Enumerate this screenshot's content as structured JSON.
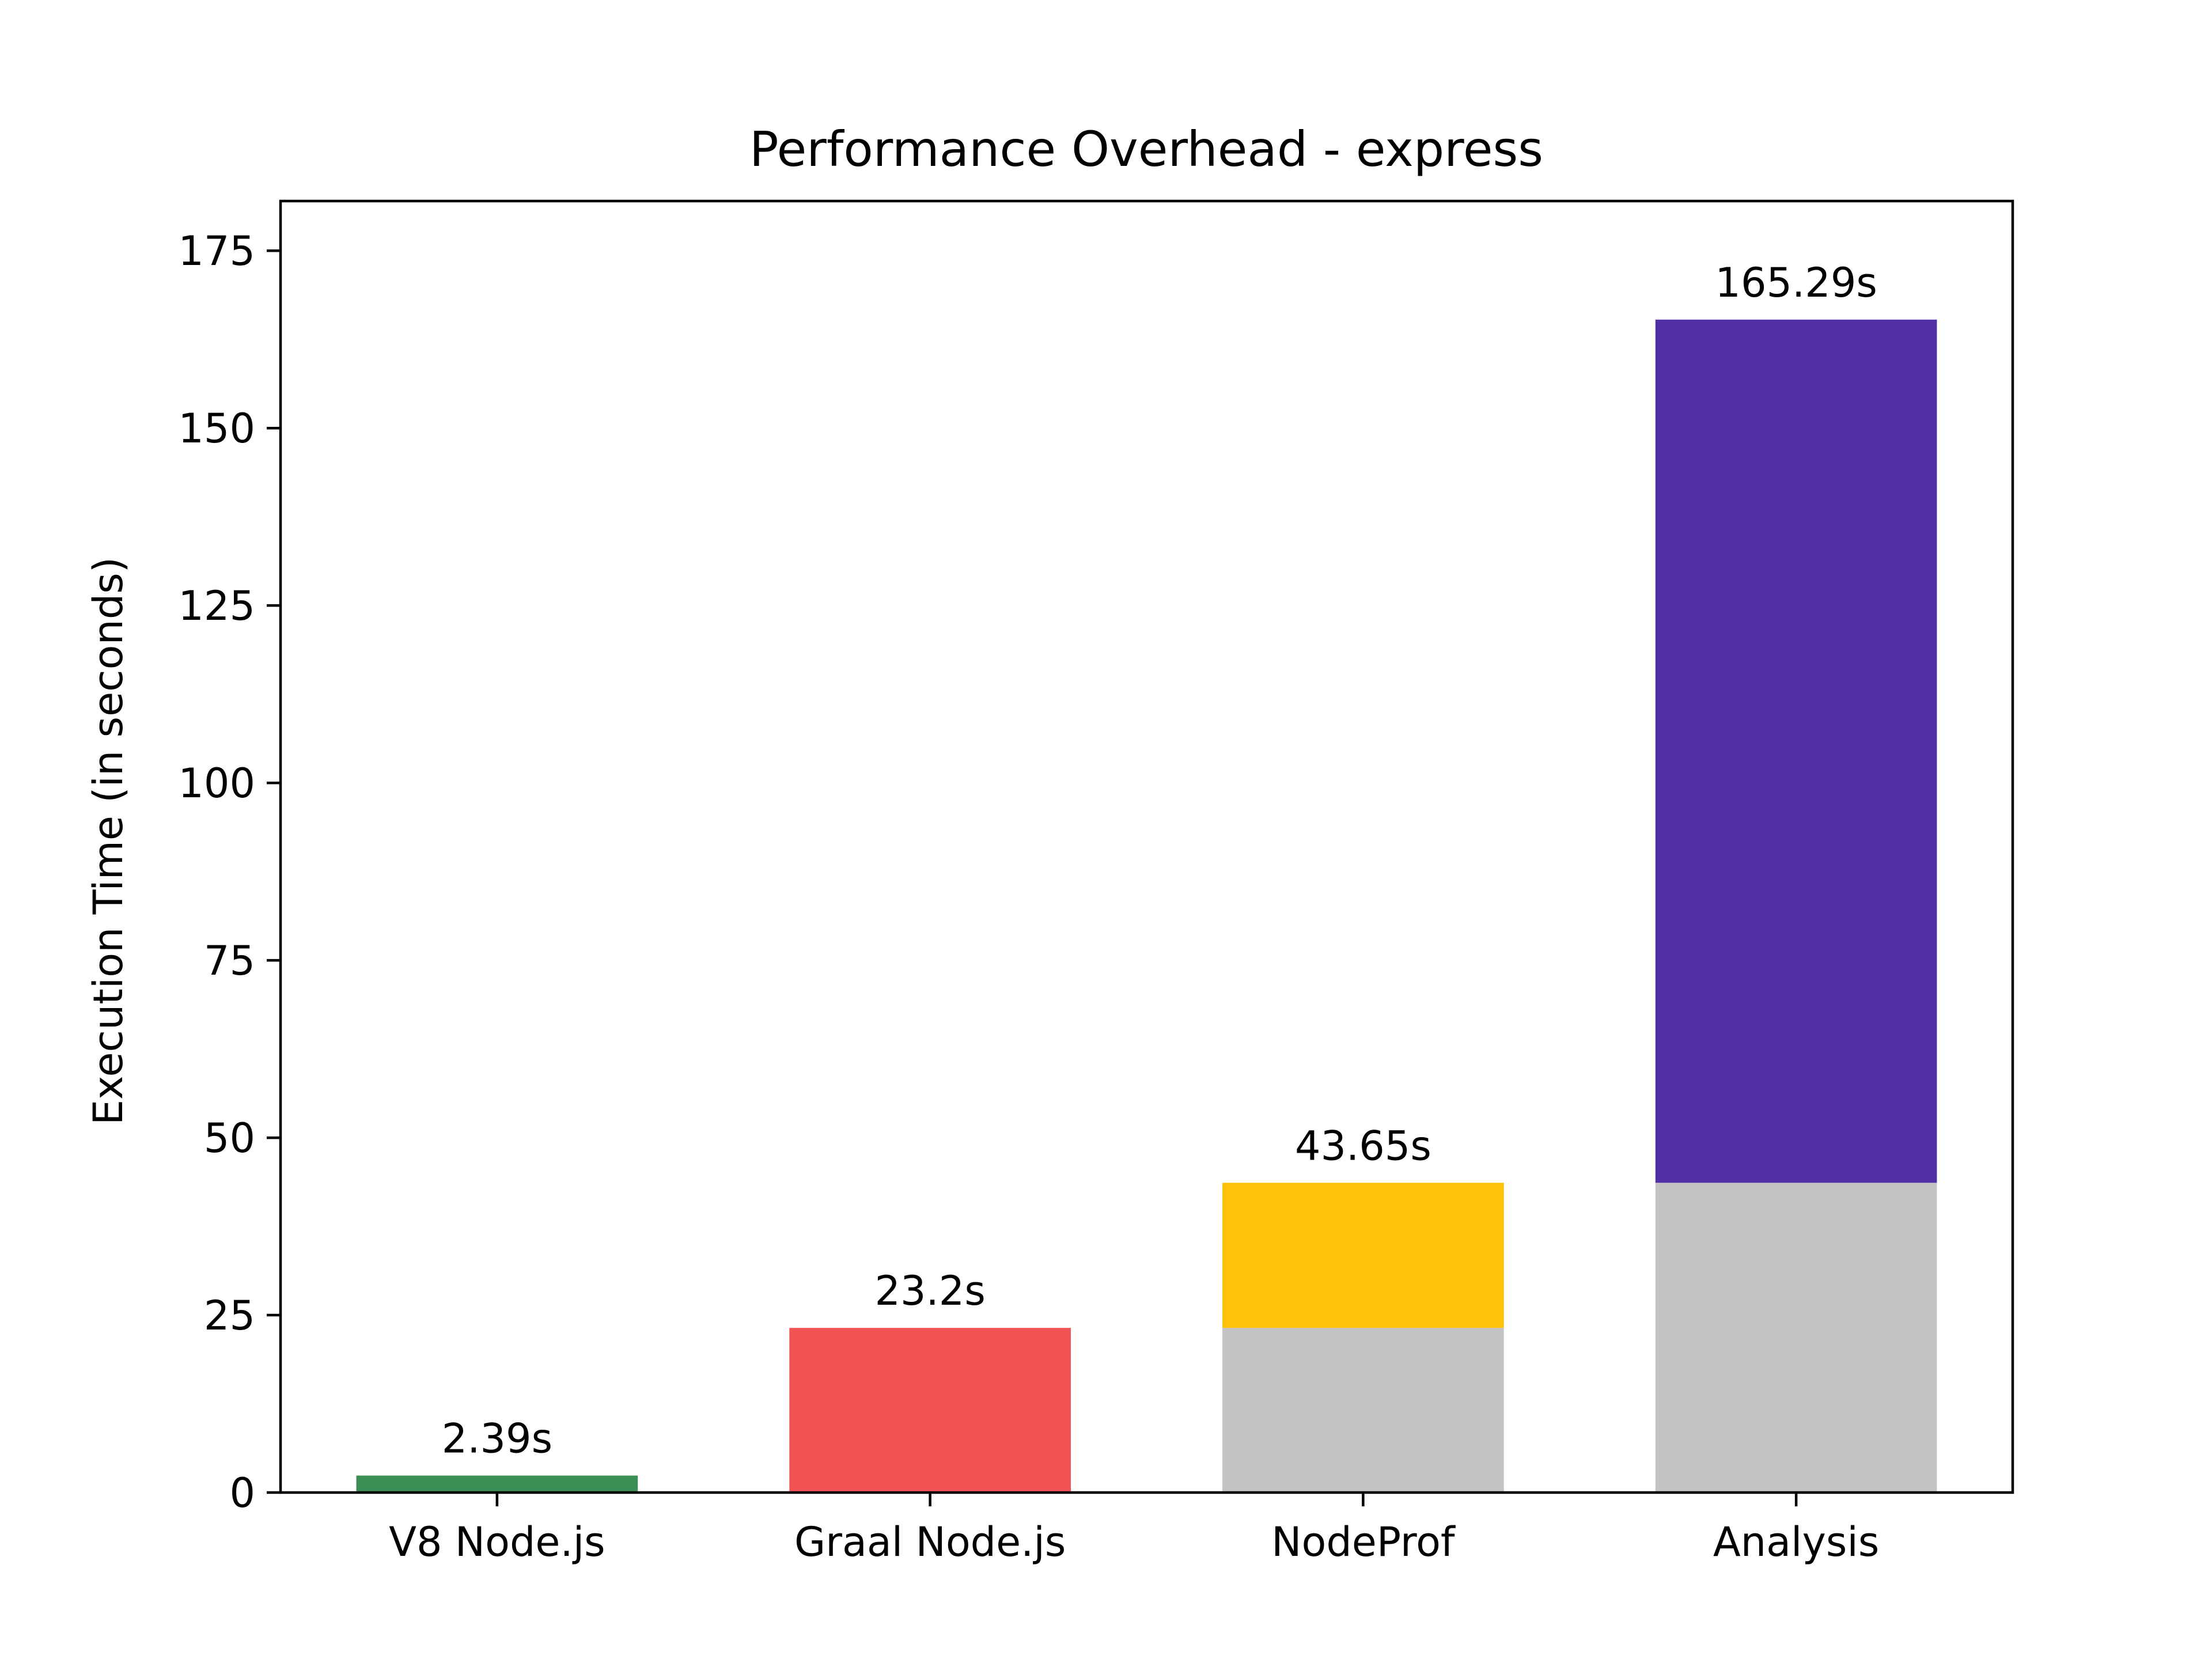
{
  "chart_data": {
    "type": "bar",
    "stacked": true,
    "title": "Performance Overhead - express",
    "xlabel": "",
    "ylabel": "Execution Time (in seconds)",
    "ylim": [
      0,
      182
    ],
    "yticks": [
      0,
      25,
      50,
      75,
      100,
      125,
      150,
      175
    ],
    "grid": false,
    "categories": [
      "V8 Node.js",
      "Graal Node.js",
      "NodeProf",
      "Analysis"
    ],
    "bars": [
      {
        "category": "V8 Node.js",
        "total_label": "2.39s",
        "segments": [
          {
            "value": 2.39,
            "color": "#3b8f56"
          }
        ]
      },
      {
        "category": "Graal Node.js",
        "total_label": "23.2s",
        "segments": [
          {
            "value": 23.2,
            "color": "#f25252"
          }
        ]
      },
      {
        "category": "NodeProf",
        "total_label": "43.65s",
        "segments": [
          {
            "value": 23.2,
            "color": "#c3c3c3"
          },
          {
            "value": 20.45,
            "color": "#ffc10a"
          }
        ]
      },
      {
        "category": "Analysis",
        "total_label": "165.29s",
        "segments": [
          {
            "value": 43.65,
            "color": "#c3c3c3"
          },
          {
            "value": 121.64,
            "color": "#5130a6"
          }
        ]
      }
    ]
  }
}
